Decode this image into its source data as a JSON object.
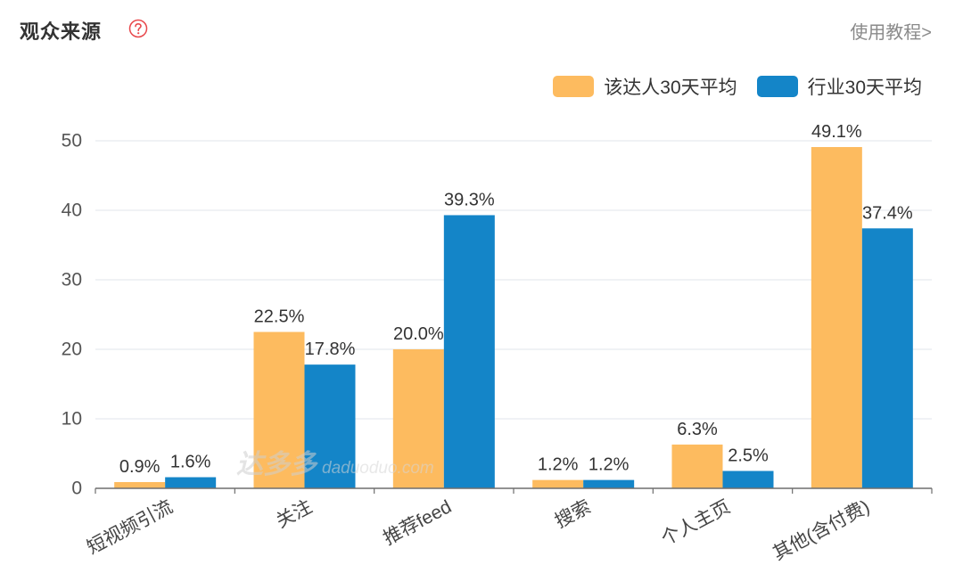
{
  "header": {
    "title": "观众来源",
    "help_icon": "question-circle-icon",
    "tutorial_link": "使用教程>"
  },
  "watermark": {
    "logo": "达多多",
    "domain": "daduoduo.com"
  },
  "colors": {
    "help_icon": "#E8474B",
    "grid": "#E6E9EF",
    "axis": "#6E6E6E"
  },
  "chart_data": {
    "type": "bar",
    "categories": [
      "短视频引流",
      "关注",
      "推荐feed",
      "搜索",
      "个人主页",
      "其他(含付费)"
    ],
    "series": [
      {
        "name": "该达人30天平均",
        "color": "#FDBB5F",
        "values": [
          0.9,
          22.5,
          20.0,
          1.2,
          6.3,
          49.1
        ],
        "labels": [
          "0.9%",
          "22.5%",
          "20.0%",
          "1.2%",
          "6.3%",
          "49.1%"
        ]
      },
      {
        "name": "行业30天平均",
        "color": "#1485C8",
        "values": [
          1.6,
          17.8,
          39.3,
          1.2,
          2.5,
          37.4
        ],
        "labels": [
          "1.6%",
          "17.8%",
          "39.3%",
          "1.2%",
          "2.5%",
          "37.4%"
        ]
      }
    ],
    "yticks": [
      0,
      10,
      20,
      30,
      40,
      50
    ],
    "ylim": [
      0,
      50
    ],
    "grid": true,
    "legend_position": "top-right"
  }
}
